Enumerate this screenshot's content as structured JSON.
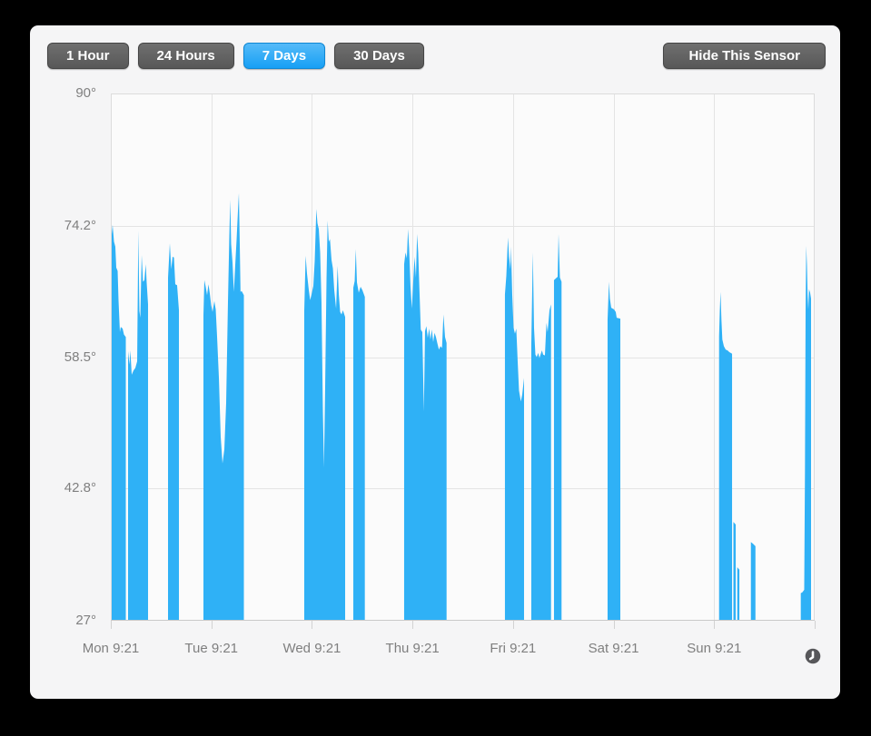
{
  "toolbar": {
    "range_buttons": [
      {
        "label": "1 Hour",
        "active": false
      },
      {
        "label": "24 Hours",
        "active": false
      },
      {
        "label": "7 Days",
        "active": true
      },
      {
        "label": "30 Days",
        "active": false
      }
    ],
    "hide_sensor_label": "Hide This Sensor"
  },
  "colors": {
    "window_background": "#000000",
    "panel_background": "#f5f5f6",
    "plot_background": "#fbfbfb",
    "gridline": "#e4e4e4",
    "plot_border": "#dcdcdc",
    "axis_line": "#c9c9c9",
    "axis_label": "#7f7f7f",
    "series_fill": "#2fb1f6",
    "button_dark": "#5d5d5d",
    "button_active_blue": "#1fa3f5",
    "clock_icon": "#57575a"
  },
  "chart_data": {
    "type": "area",
    "unit": "°",
    "grid": true,
    "legend": false,
    "ylim": [
      27,
      90
    ],
    "y_ticks": [
      {
        "value": 90,
        "label": "90°"
      },
      {
        "value": 74.2,
        "label": "74.2°"
      },
      {
        "value": 58.5,
        "label": "58.5°"
      },
      {
        "value": 42.8,
        "label": "42.8°"
      },
      {
        "value": 27,
        "label": "27°"
      }
    ],
    "x_unit": "hours_since_first_tick",
    "xlim": [
      0,
      168
    ],
    "x_ticks": [
      {
        "hour": 0,
        "label": "Mon 9:21"
      },
      {
        "hour": 24,
        "label": "Tue 9:21"
      },
      {
        "hour": 48,
        "label": "Wed 9:21"
      },
      {
        "hour": 72,
        "label": "Thu 9:21"
      },
      {
        "hour": 96,
        "label": "Fri 9:21"
      },
      {
        "hour": 120,
        "label": "Sat 9:21"
      },
      {
        "hour": 144,
        "label": "Sun 9:21"
      },
      {
        "hour": 168,
        "label": ""
      }
    ],
    "series": [
      {
        "name": "temperature",
        "color": "#2fb1f6",
        "baseline": 27,
        "segments": [
          [
            [
              0,
              71.3
            ],
            [
              0.22,
              73.2
            ],
            [
              0.43,
              74.3
            ],
            [
              0.76,
              72.3
            ],
            [
              1.08,
              71.7
            ],
            [
              1.3,
              69.2
            ],
            [
              1.63,
              68.8
            ],
            [
              1.84,
              65.3
            ],
            [
              2.17,
              61.5
            ],
            [
              2.38,
              62.1
            ],
            [
              2.82,
              61.9
            ],
            [
              3.14,
              61.2
            ],
            [
              3.58,
              60.9
            ]
          ],
          [
            [
              4.12,
              59.2
            ],
            [
              4.44,
              57.6
            ],
            [
              4.66,
              59.3
            ],
            [
              4.99,
              56.4
            ],
            [
              5.42,
              56.9
            ],
            [
              5.85,
              57.2
            ],
            [
              6.29,
              58
            ],
            [
              6.57,
              73.6
            ],
            [
              6.83,
              64
            ],
            [
              7.04,
              63.2
            ],
            [
              7.37,
              70.7
            ],
            [
              7.69,
              67.5
            ],
            [
              8.02,
              67.7
            ],
            [
              8.35,
              69.6
            ],
            [
              8.56,
              67.4
            ],
            [
              8.89,
              64.8
            ]
          ],
          [
            [
              13.66,
              68
            ],
            [
              14.09,
              72.1
            ],
            [
              14.42,
              69
            ],
            [
              14.74,
              70.5
            ],
            [
              15.07,
              70.4
            ],
            [
              15.39,
              67.2
            ],
            [
              15.82,
              67.1
            ],
            [
              16.26,
              64.1
            ]
          ],
          [
            [
              22.11,
              63.5
            ],
            [
              22.33,
              67.7
            ],
            [
              22.65,
              66.9
            ],
            [
              22.98,
              65.9
            ],
            [
              23.3,
              67.2
            ],
            [
              23.63,
              66.1
            ],
            [
              23.95,
              64.7
            ],
            [
              24.28,
              63.9
            ],
            [
              24.71,
              65.2
            ],
            [
              25.04,
              64.2
            ],
            [
              25.36,
              61
            ],
            [
              25.8,
              56
            ],
            [
              26.23,
              49
            ],
            [
              26.66,
              45.8
            ],
            [
              27.1,
              47.5
            ],
            [
              27.53,
              53
            ],
            [
              27.96,
              65
            ],
            [
              28.29,
              73
            ],
            [
              28.51,
              77.3
            ],
            [
              28.72,
              72
            ],
            [
              29.05,
              69.8
            ],
            [
              29.37,
              66.3
            ],
            [
              29.7,
              69.5
            ],
            [
              30.02,
              72.5
            ],
            [
              30.35,
              76
            ],
            [
              30.57,
              78.1
            ],
            [
              30.78,
              72
            ],
            [
              30.96,
              66.3
            ],
            [
              31.22,
              66.4
            ],
            [
              31.76,
              65.9
            ]
          ],
          [
            [
              46.17,
              64
            ],
            [
              46.5,
              70.6
            ],
            [
              46.82,
              68.5
            ],
            [
              47.26,
              66.5
            ],
            [
              47.58,
              65.3
            ],
            [
              47.91,
              66
            ],
            [
              48.34,
              67
            ],
            [
              48.67,
              70
            ],
            [
              49.06,
              76.2
            ],
            [
              49.32,
              74.5
            ],
            [
              49.64,
              73.8
            ],
            [
              49.97,
              71
            ],
            [
              50.29,
              65
            ],
            [
              50.62,
              52
            ],
            [
              50.88,
              45.3
            ],
            [
              51.16,
              55
            ],
            [
              51.49,
              68
            ],
            [
              51.75,
              74.8
            ],
            [
              52.03,
              72.3
            ],
            [
              52.31,
              72.6
            ],
            [
              52.68,
              70.1
            ],
            [
              53.01,
              69.1
            ],
            [
              53.33,
              66.5
            ],
            [
              53.77,
              64.3
            ],
            [
              54.13,
              69.4
            ],
            [
              54.42,
              66
            ],
            [
              54.74,
              63.9
            ],
            [
              55.07,
              63.6
            ],
            [
              55.39,
              64.1
            ],
            [
              55.93,
              63.3
            ]
          ],
          [
            [
              57.88,
              66.8
            ],
            [
              58.21,
              67.6
            ],
            [
              58.47,
              71.4
            ],
            [
              58.75,
              67.4
            ],
            [
              59.18,
              66.2
            ],
            [
              59.62,
              66.9
            ],
            [
              60.05,
              66.5
            ],
            [
              60.63,
              65.7
            ]
          ],
          [
            [
              70.01,
              69.6
            ],
            [
              70.34,
              71
            ],
            [
              70.66,
              70.3
            ],
            [
              70.94,
              73.8
            ],
            [
              71.2,
              71.5
            ],
            [
              71.53,
              67
            ],
            [
              71.85,
              64.3
            ],
            [
              72.18,
              67.5
            ],
            [
              72.5,
              70.5
            ],
            [
              72.83,
              68
            ],
            [
              73.11,
              73.2
            ],
            [
              73.37,
              71
            ],
            [
              73.7,
              66
            ],
            [
              73.98,
              61.8
            ],
            [
              74.35,
              61.5
            ],
            [
              74.72,
              52
            ],
            [
              75,
              61.6
            ],
            [
              75.32,
              62.2
            ],
            [
              75.65,
              60.8
            ],
            [
              75.97,
              61.9
            ],
            [
              76.3,
              60.6
            ],
            [
              76.62,
              61.8
            ],
            [
              76.95,
              60.3
            ],
            [
              77.27,
              61.4
            ],
            [
              77.6,
              60.9
            ],
            [
              77.92,
              60.2
            ],
            [
              78.31,
              59.4
            ],
            [
              78.68,
              59.8
            ],
            [
              79.05,
              59.6
            ],
            [
              79.4,
              63.6
            ],
            [
              79.77,
              60.9
            ],
            [
              80.14,
              60.2
            ]
          ],
          [
            [
              94.07,
              66
            ],
            [
              94.4,
              68.2
            ],
            [
              94.79,
              72.8
            ],
            [
              95.05,
              70.5
            ],
            [
              95.37,
              69
            ],
            [
              95.52,
              71.7
            ],
            [
              95.81,
              66
            ],
            [
              96.13,
              62
            ],
            [
              96.46,
              61.3
            ],
            [
              96.78,
              61.9
            ],
            [
              97.11,
              58
            ],
            [
              97.43,
              54.5
            ],
            [
              97.87,
              53.2
            ],
            [
              98.19,
              54
            ],
            [
              98.63,
              56
            ]
          ],
          [
            [
              100.36,
              60
            ],
            [
              100.73,
              71
            ],
            [
              101.01,
              62
            ],
            [
              101.34,
              58.8
            ],
            [
              101.66,
              58.5
            ],
            [
              101.99,
              59
            ],
            [
              102.31,
              58.4
            ],
            [
              102.9,
              59.3
            ],
            [
              103.18,
              58.8
            ],
            [
              103.61,
              58.7
            ],
            [
              103.98,
              62.6
            ],
            [
              104.26,
              61.5
            ],
            [
              104.7,
              64.1
            ],
            [
              105.07,
              64.8
            ]
          ],
          [
            [
              105.78,
              67.7
            ],
            [
              106.22,
              67.9
            ],
            [
              106.65,
              68.1
            ],
            [
              106.87,
              73.2
            ],
            [
              107.19,
              68
            ],
            [
              107.58,
              67.5
            ]
          ],
          [
            [
              118.57,
              63
            ],
            [
              118.9,
              67.5
            ],
            [
              119.11,
              65.5
            ],
            [
              119.44,
              64.4
            ],
            [
              120.09,
              64.2
            ],
            [
              120.52,
              63.9
            ],
            [
              120.74,
              63.2
            ],
            [
              121.61,
              63.1
            ]
          ],
          [
            [
              145.18,
              61
            ],
            [
              145.35,
              64
            ],
            [
              145.53,
              66.3
            ],
            [
              145.74,
              63
            ],
            [
              145.96,
              60.6
            ],
            [
              146.33,
              59.8
            ],
            [
              146.76,
              59.4
            ],
            [
              147.2,
              59.3
            ],
            [
              147.63,
              59.1
            ],
            [
              148.28,
              58.9
            ]
          ],
          [
            [
              148.6,
              38.8
            ],
            [
              149.15,
              38.5
            ]
          ],
          [
            [
              149.52,
              33.4
            ],
            [
              150.02,
              33.1
            ]
          ],
          [
            [
              152.77,
              36.4
            ],
            [
              153.27,
              36.2
            ],
            [
              153.86,
              35.9
            ]
          ],
          [
            [
              164.68,
              30.3
            ],
            [
              165.07,
              30.4
            ],
            [
              165.5,
              30.7
            ],
            [
              165.68,
              45
            ],
            [
              165.83,
              64
            ],
            [
              165.98,
              71.8
            ],
            [
              166.15,
              69.5
            ],
            [
              166.31,
              66
            ],
            [
              166.48,
              64.2
            ],
            [
              166.65,
              66.6
            ],
            [
              166.91,
              66.2
            ],
            [
              167.13,
              65.5
            ]
          ]
        ]
      }
    ]
  }
}
